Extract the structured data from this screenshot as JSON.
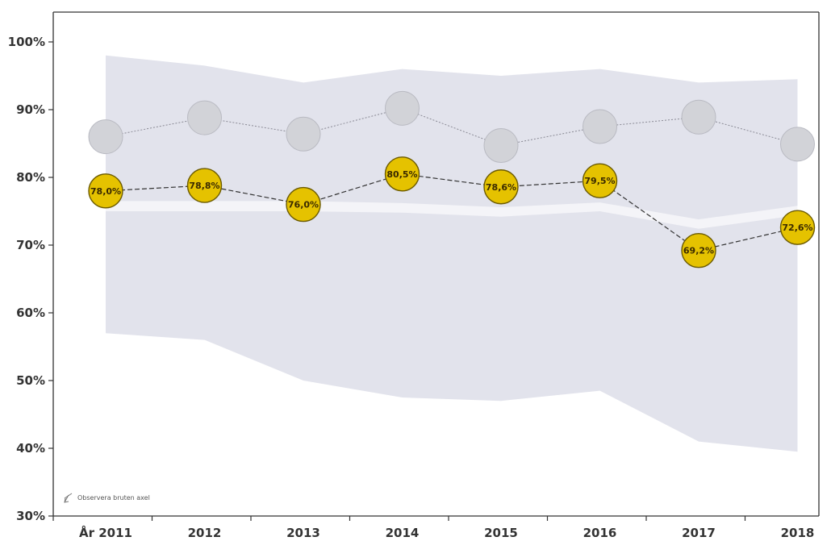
{
  "chart_data": {
    "type": "line",
    "categories": [
      "År 2011",
      "2012",
      "2013",
      "2014",
      "2015",
      "2016",
      "2017",
      "2018"
    ],
    "ylim": [
      30,
      100
    ],
    "yticks": [
      30,
      40,
      50,
      60,
      70,
      80,
      90,
      100
    ],
    "ytick_labels": [
      "30%",
      "40%",
      "50%",
      "60%",
      "70%",
      "80%",
      "90%",
      "100%"
    ],
    "grid": false,
    "series": [
      {
        "role": "upper-series",
        "values": [
          86.0,
          88.8,
          86.4,
          90.2,
          84.7,
          87.5,
          88.9,
          84.9
        ],
        "color": "#d2d3d8",
        "line_style": "dotted"
      },
      {
        "role": "main-series",
        "values": [
          78.0,
          78.8,
          76.0,
          80.5,
          78.6,
          79.5,
          69.2,
          72.6
        ],
        "labels": [
          "78,0%",
          "78,8%",
          "76,0%",
          "80,5%",
          "78,6%",
          "79,5%",
          "69,2%",
          "72,6%"
        ],
        "color": "#e5c200",
        "line_style": "dashed"
      }
    ],
    "band": {
      "upper": [
        98.0,
        96.5,
        94.0,
        96.0,
        95.0,
        96.0,
        94.0,
        94.5
      ],
      "lower": [
        57.0,
        56.0,
        50.0,
        47.5,
        47.0,
        48.5,
        41.0,
        39.5
      ],
      "color": "#e2e3ec"
    },
    "reference_band": {
      "upper": [
        76.5,
        76.5,
        76.5,
        76.2,
        75.6,
        76.3,
        73.8,
        75.8
      ],
      "lower": [
        75.0,
        75.0,
        75.0,
        74.8,
        74.2,
        75.0,
        72.4,
        74.4
      ],
      "color": "#f4f4f8"
    },
    "annotation": "Observera bruten axel"
  },
  "icons": {
    "broken_axis": "broken-axis-icon"
  }
}
